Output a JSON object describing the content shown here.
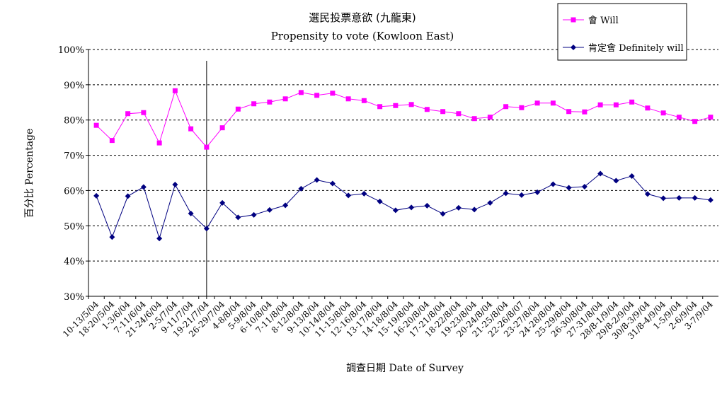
{
  "chart_data": {
    "type": "line",
    "title": "選民投票意欲 (九龍東)",
    "subtitle": "Propensity to vote (Kowloon East)",
    "xlabel": "調查日期 Date of Survey",
    "ylabel": "百分比 Percentage",
    "ylim": [
      30,
      100
    ],
    "yticks": [
      "30%",
      "40%",
      "50%",
      "60%",
      "70%",
      "80%",
      "90%",
      "100%"
    ],
    "grid": "horizontal dashed",
    "legend": "top-right",
    "categories": [
      "10-13/5/04",
      "18-20/5/04",
      "1-3/6/04",
      "7-11/6/04",
      "21-24/6/04",
      "2-5/7/04",
      "9-11/7/04",
      "19-21/7/04",
      "26-29/7/04",
      "4-8/8/04",
      "5-9/8/04",
      "6-10/8/04",
      "7-11/8/04",
      "8-12/8/04",
      "9-13/8/04",
      "10-14/8/04",
      "11-15/8/04",
      "12-16/8/04",
      "13-17/8/04",
      "14-18/8/04",
      "15-19/8/04",
      "16-20/8/04",
      "17-21/8/04",
      "18-22/8/04",
      "19-23/8/04",
      "20-24/8/04",
      "21-25/8/04",
      "22-26/8/07",
      "23-27/8/04",
      "24-28/8/04",
      "25-29/8/04",
      "26-30/8/04",
      "27-31/8/04",
      "28/8-1/9/04",
      "29/8-2/9/04",
      "30/8-3/9/04",
      "31/8-4/9/04",
      "1-5/9/04",
      "2-6/9/04",
      "3-7/9/04"
    ],
    "marker_line_after": "19-21/7/04",
    "series": [
      {
        "name": "會 Will",
        "color": "#ff00ff",
        "marker": "square",
        "values": [
          78.5,
          74.2,
          81.8,
          82.1,
          73.5,
          88.3,
          77.5,
          72.3,
          77.8,
          83.1,
          84.6,
          85.1,
          86.0,
          87.8,
          87.0,
          87.6,
          86.0,
          85.5,
          83.8,
          84.1,
          84.4,
          83.0,
          82.4,
          81.8,
          80.4,
          80.8,
          83.8,
          83.5,
          84.8,
          84.8,
          82.4,
          82.3,
          84.3,
          84.3,
          85.1,
          83.4,
          82.0,
          80.8,
          79.6,
          80.8
        ]
      },
      {
        "name": "肯定會 Definitely will",
        "color": "#000080",
        "marker": "diamond",
        "values": [
          58.5,
          46.8,
          58.4,
          61.0,
          46.4,
          61.7,
          53.5,
          49.2,
          56.5,
          52.4,
          53.1,
          54.5,
          55.8,
          60.5,
          63.0,
          62.0,
          58.6,
          59.1,
          56.9,
          54.4,
          55.2,
          55.7,
          53.4,
          55.1,
          54.6,
          56.5,
          59.2,
          58.7,
          59.5,
          61.8,
          60.8,
          61.1,
          64.8,
          62.8,
          64.1,
          59.0,
          57.8,
          57.9,
          57.9,
          57.3
        ]
      }
    ]
  }
}
